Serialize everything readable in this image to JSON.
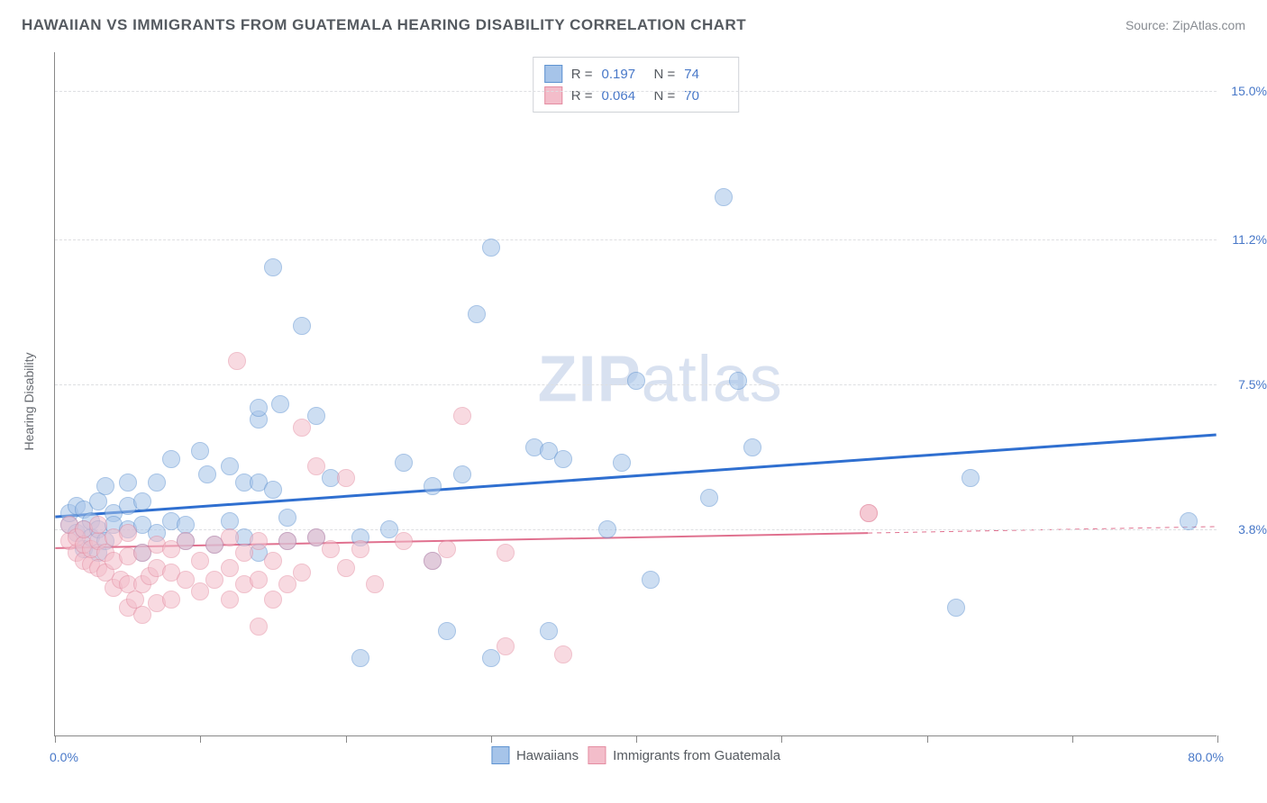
{
  "title": "HAWAIIAN VS IMMIGRANTS FROM GUATEMALA HEARING DISABILITY CORRELATION CHART",
  "source": "Source: ZipAtlas.com",
  "watermark": {
    "zip": "ZIP",
    "atlas": "atlas"
  },
  "chart": {
    "type": "scatter",
    "background_color": "#ffffff",
    "grid_color": "#dedfe2",
    "axis_color": "#888888",
    "xlim": [
      0,
      80
    ],
    "ylim": [
      -1.5,
      16
    ],
    "xlabel_start": "0.0%",
    "xlabel_end": "80.0%",
    "yticks": [
      {
        "value": 3.8,
        "label": "3.8%"
      },
      {
        "value": 7.5,
        "label": "7.5%"
      },
      {
        "value": 11.2,
        "label": "11.2%"
      },
      {
        "value": 15.0,
        "label": "15.0%"
      }
    ],
    "xtick_positions": [
      0,
      10,
      20,
      30,
      40,
      50,
      60,
      70,
      80
    ],
    "ylabel": "Hearing Disability",
    "marker_radius": 10,
    "marker_stroke_width": 1.2,
    "series": [
      {
        "name": "Hawaiians",
        "marker_color": "#a6c4e9",
        "marker_stroke": "#5f93d1",
        "trend_color": "#2f6fd0",
        "trend_width": 3,
        "trend_dash": "none",
        "trend": {
          "x0": 0,
          "y0": 4.1,
          "x1": 80,
          "y1": 6.2
        },
        "stats": {
          "R": "0.197",
          "N": "74"
        },
        "points": [
          [
            1,
            3.9
          ],
          [
            1,
            4.2
          ],
          [
            1.5,
            3.7
          ],
          [
            1.5,
            4.4
          ],
          [
            2,
            3.3
          ],
          [
            2,
            3.8
          ],
          [
            2,
            4.3
          ],
          [
            2.5,
            3.6
          ],
          [
            2.5,
            4.0
          ],
          [
            3,
            3.2
          ],
          [
            3,
            3.8
          ],
          [
            3,
            4.5
          ],
          [
            3.5,
            4.9
          ],
          [
            3.5,
            3.5
          ],
          [
            4,
            4.2
          ],
          [
            4,
            3.9
          ],
          [
            5,
            3.8
          ],
          [
            5,
            4.4
          ],
          [
            5,
            5.0
          ],
          [
            6,
            3.2
          ],
          [
            6,
            3.9
          ],
          [
            6,
            4.5
          ],
          [
            7,
            3.7
          ],
          [
            7,
            5.0
          ],
          [
            8,
            5.6
          ],
          [
            8,
            4.0
          ],
          [
            9,
            3.5
          ],
          [
            9,
            3.9
          ],
          [
            10,
            5.8
          ],
          [
            10.5,
            5.2
          ],
          [
            11,
            3.4
          ],
          [
            12,
            4.0
          ],
          [
            12,
            5.4
          ],
          [
            13,
            3.6
          ],
          [
            13,
            5.0
          ],
          [
            14,
            3.2
          ],
          [
            14,
            5.0
          ],
          [
            14,
            6.6
          ],
          [
            14,
            6.9
          ],
          [
            15,
            4.8
          ],
          [
            15,
            10.5
          ],
          [
            15.5,
            7.0
          ],
          [
            16,
            3.5
          ],
          [
            16,
            4.1
          ],
          [
            17,
            9.0
          ],
          [
            18,
            3.6
          ],
          [
            18,
            6.7
          ],
          [
            19,
            5.1
          ],
          [
            21,
            3.6
          ],
          [
            21,
            0.5
          ],
          [
            23,
            3.8
          ],
          [
            24,
            5.5
          ],
          [
            26,
            3.0
          ],
          [
            26,
            4.9
          ],
          [
            27,
            1.2
          ],
          [
            28,
            5.2
          ],
          [
            29,
            9.3
          ],
          [
            30,
            0.5
          ],
          [
            30,
            11.0
          ],
          [
            33,
            5.9
          ],
          [
            34,
            1.2
          ],
          [
            34,
            5.8
          ],
          [
            35,
            5.6
          ],
          [
            38,
            3.8
          ],
          [
            39,
            5.5
          ],
          [
            40,
            7.6
          ],
          [
            41,
            2.5
          ],
          [
            45,
            4.6
          ],
          [
            46,
            12.3
          ],
          [
            47,
            7.6
          ],
          [
            48,
            5.9
          ],
          [
            62,
            1.8
          ],
          [
            63,
            5.1
          ],
          [
            78,
            4.0
          ]
        ]
      },
      {
        "name": "Immigrants from Guatemala",
        "marker_color": "#f3bdca",
        "marker_stroke": "#e48da2",
        "trend_color": "#e0718f",
        "trend_width": 2,
        "trend_dash": "solid_partial",
        "trend_solid_xmax": 56,
        "trend": {
          "x0": 0,
          "y0": 3.3,
          "x1": 80,
          "y1": 3.85
        },
        "stats": {
          "R": "0.064",
          "N": "70"
        },
        "points": [
          [
            1,
            3.5
          ],
          [
            1,
            3.9
          ],
          [
            1.5,
            3.2
          ],
          [
            1.5,
            3.6
          ],
          [
            2,
            3.0
          ],
          [
            2,
            3.4
          ],
          [
            2,
            3.8
          ],
          [
            2.5,
            2.9
          ],
          [
            2.5,
            3.3
          ],
          [
            3,
            2.8
          ],
          [
            3,
            3.5
          ],
          [
            3,
            3.9
          ],
          [
            3.5,
            2.7
          ],
          [
            3.5,
            3.2
          ],
          [
            4,
            2.3
          ],
          [
            4,
            3.0
          ],
          [
            4,
            3.6
          ],
          [
            4.5,
            2.5
          ],
          [
            5,
            1.8
          ],
          [
            5,
            2.4
          ],
          [
            5,
            3.1
          ],
          [
            5,
            3.7
          ],
          [
            5.5,
            2.0
          ],
          [
            6,
            1.6
          ],
          [
            6,
            2.4
          ],
          [
            6,
            3.2
          ],
          [
            6.5,
            2.6
          ],
          [
            7,
            1.9
          ],
          [
            7,
            2.8
          ],
          [
            7,
            3.4
          ],
          [
            8,
            2.0
          ],
          [
            8,
            2.7
          ],
          [
            8,
            3.3
          ],
          [
            9,
            2.5
          ],
          [
            9,
            3.5
          ],
          [
            10,
            2.2
          ],
          [
            10,
            3.0
          ],
          [
            11,
            2.5
          ],
          [
            11,
            3.4
          ],
          [
            12,
            2.0
          ],
          [
            12,
            2.8
          ],
          [
            12,
            3.6
          ],
          [
            12.5,
            8.1
          ],
          [
            13,
            2.4
          ],
          [
            13,
            3.2
          ],
          [
            14,
            2.5
          ],
          [
            14,
            1.3
          ],
          [
            14,
            3.5
          ],
          [
            15,
            2.0
          ],
          [
            15,
            3.0
          ],
          [
            16,
            2.4
          ],
          [
            16,
            3.5
          ],
          [
            17,
            6.4
          ],
          [
            17,
            2.7
          ],
          [
            18,
            3.6
          ],
          [
            18,
            5.4
          ],
          [
            19,
            3.3
          ],
          [
            20,
            2.8
          ],
          [
            20,
            5.1
          ],
          [
            21,
            3.3
          ],
          [
            22,
            2.4
          ],
          [
            24,
            3.5
          ],
          [
            26,
            3.0
          ],
          [
            27,
            3.3
          ],
          [
            28,
            6.7
          ],
          [
            31,
            3.2
          ],
          [
            31,
            0.8
          ],
          [
            35,
            0.6
          ],
          [
            56,
            4.2
          ],
          [
            56,
            4.2
          ]
        ]
      }
    ],
    "bottom_legend": [
      {
        "label": "Hawaiians",
        "swatch_fill": "#a6c4e9",
        "swatch_stroke": "#5f93d1"
      },
      {
        "label": "Immigrants from Guatemala",
        "swatch_fill": "#f3bdca",
        "swatch_stroke": "#e48da2"
      }
    ]
  }
}
